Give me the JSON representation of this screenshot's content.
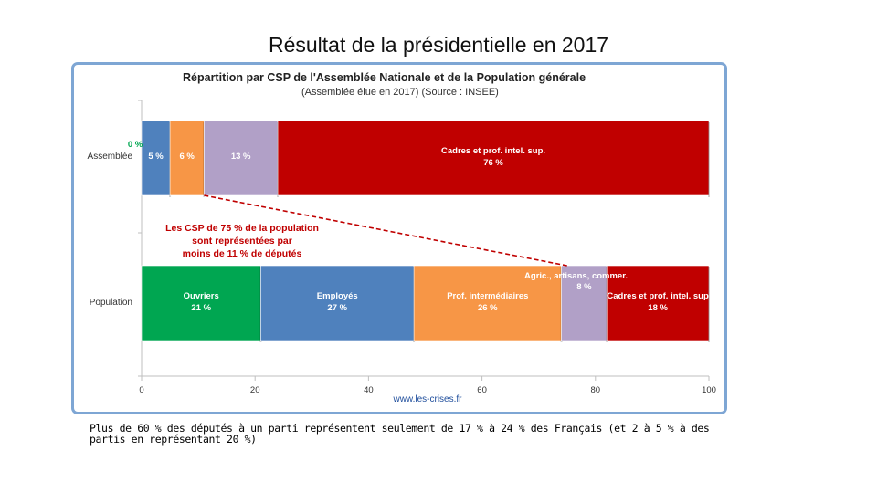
{
  "slide": {
    "title": "Résultat de la présidentielle en 2017",
    "caption": "Plus de 60 % des députés à un parti représentent seulement de 17 % à 24 % des Français (et 2 à 5 % à des partis en représentant 20 %)"
  },
  "chart_data": {
    "type": "bar",
    "orientation": "horizontal-stacked-100",
    "title": "Répartition par CSP de l'Assemblée Nationale et de la Population générale",
    "subtitle": "(Assemblée élue en 2017) (Source : INSEE)",
    "categories": [
      "Assemblée",
      "Population"
    ],
    "xlim": [
      0,
      100
    ],
    "xticks": [
      0,
      20,
      40,
      60,
      80,
      100
    ],
    "segments": [
      {
        "category": "Assemblée",
        "name": "Ouvriers",
        "value": 0,
        "label": "",
        "color": "#00a651"
      },
      {
        "category": "Assemblée",
        "name": "Employés",
        "value": 5,
        "label": "5 %",
        "color": "#4f81bd"
      },
      {
        "category": "Assemblée",
        "name": "Prof. intermédiaires",
        "value": 6,
        "label": "6 %",
        "color": "#f79646"
      },
      {
        "category": "Assemblée",
        "name": "Agric., artisans, commer.",
        "value": 13,
        "label": "13 %",
        "color": "#b1a0c7"
      },
      {
        "category": "Assemblée",
        "name": "Cadres et prof. intel. sup.",
        "value": 76,
        "label": "Cadres et prof. intel. sup.\n76 %",
        "color": "#c00000"
      },
      {
        "category": "Population",
        "name": "Ouvriers",
        "value": 21,
        "label": "Ouvriers\n21 %",
        "color": "#00a651"
      },
      {
        "category": "Population",
        "name": "Employés",
        "value": 27,
        "label": "Employés\n27 %",
        "color": "#4f81bd"
      },
      {
        "category": "Population",
        "name": "Prof. intermédiaires",
        "value": 26,
        "label": "Prof. intermédiaires\n26 %",
        "color": "#f79646"
      },
      {
        "category": "Population",
        "name": "Agric., artisans, commer.",
        "value": 8,
        "label": "",
        "color": "#b1a0c7"
      },
      {
        "category": "Population",
        "name": "Cadres et prof. intel. sup.",
        "value": 18,
        "label": "Cadres et prof. intel. sup\n18 %",
        "color": "#c00000"
      }
    ],
    "annotations": {
      "zero_label": "0 %",
      "agric_label": "Agric., artisans, commer.",
      "agric_value": "8 %",
      "note": [
        "Les CSP de 75 % de la population",
        "sont représentées par",
        "moins de 11 % de députés"
      ]
    },
    "source": "www.les-crises.fr"
  },
  "colors": {
    "red_text": "#c00000",
    "green_text": "#00a651",
    "link": "#1f4e9c",
    "frame": "#7ea6d4"
  }
}
